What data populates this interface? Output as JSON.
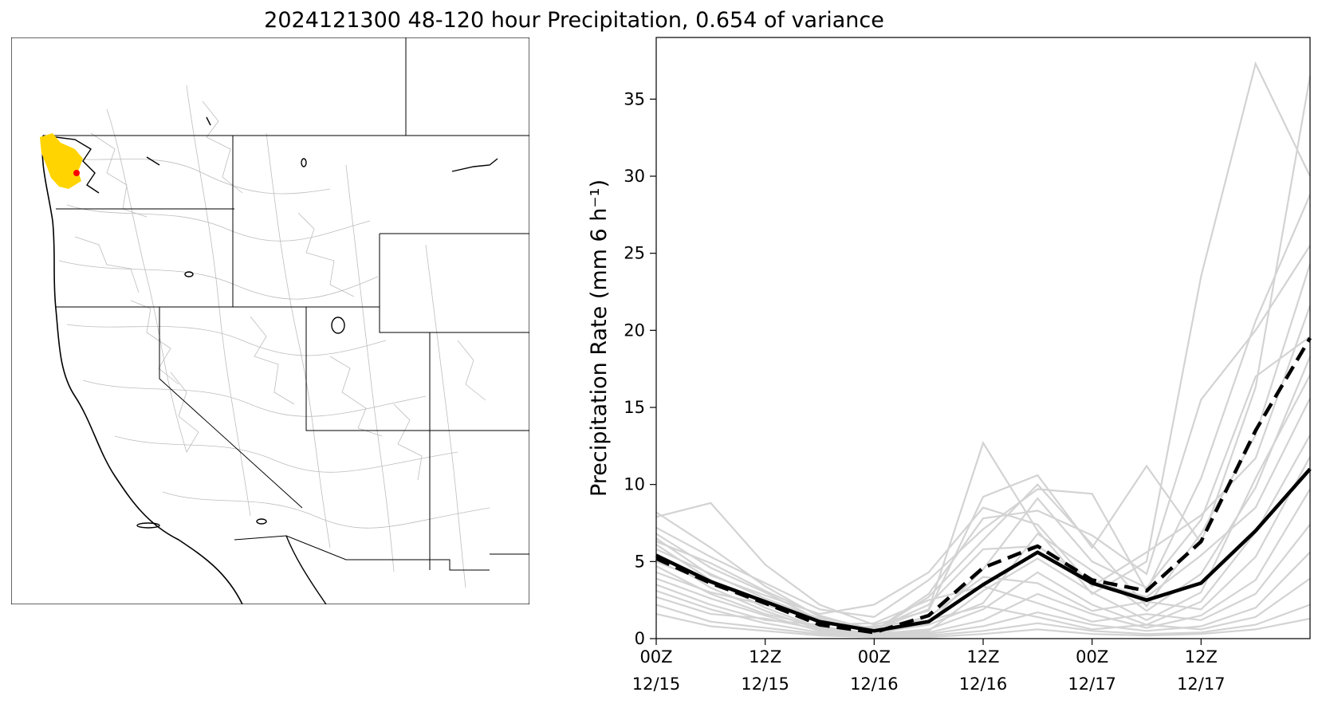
{
  "figure": {
    "title": "2024121300 48-120 hour Precipitation, 0.654 of variance"
  },
  "map": {
    "highlight_colors": {
      "basin": "#ffd400",
      "point": "#ff0000"
    },
    "border_color": "#000000",
    "river_color": "#bdbdbd"
  },
  "chart_data": {
    "type": "line",
    "title": "",
    "xlabel": "",
    "ylabel": "Precipitation Rate (mm 6 h⁻¹)",
    "ylim": [
      0,
      39
    ],
    "xlim": [
      "2024-12-15 00Z",
      "2024-12-18 00Z"
    ],
    "x": [
      "2024-12-15 00Z",
      "2024-12-15 06Z",
      "2024-12-15 12Z",
      "2024-12-15 18Z",
      "2024-12-16 00Z",
      "2024-12-16 06Z",
      "2024-12-16 12Z",
      "2024-12-16 18Z",
      "2024-12-17 00Z",
      "2024-12-17 06Z",
      "2024-12-17 12Z",
      "2024-12-17 18Z",
      "2024-12-18 00Z"
    ],
    "x_ticks": [
      {
        "x": "2024-12-15 00Z",
        "label": [
          "00Z",
          "12/15"
        ]
      },
      {
        "x": "2024-12-15 12Z",
        "label": [
          "12Z",
          "12/15"
        ]
      },
      {
        "x": "2024-12-16 00Z",
        "label": [
          "00Z",
          "12/16"
        ]
      },
      {
        "x": "2024-12-16 12Z",
        "label": [
          "12Z",
          "12/16"
        ]
      },
      {
        "x": "2024-12-17 00Z",
        "label": [
          "00Z",
          "12/17"
        ]
      },
      {
        "x": "2024-12-17 12Z",
        "label": [
          "12Z",
          "12/17"
        ]
      }
    ],
    "y_ticks": [
      0,
      5,
      10,
      15,
      20,
      25,
      30,
      35
    ],
    "grid": false,
    "series": [
      {
        "role": "ensemble-mean",
        "style": "solid",
        "color": "#000000",
        "values": [
          5.4,
          3.7,
          2.4,
          1.1,
          0.5,
          1.1,
          3.5,
          5.6,
          3.6,
          2.5,
          3.6,
          7.0,
          11.0
        ]
      },
      {
        "role": "analysis",
        "style": "dashed",
        "color": "#000000",
        "values": [
          5.2,
          3.6,
          2.3,
          0.9,
          0.4,
          1.5,
          4.6,
          6.0,
          3.8,
          3.1,
          6.3,
          13.5,
          19.5
        ]
      }
    ],
    "members": {
      "color": "#d3d3d3",
      "values": [
        [
          8.2,
          5.9,
          3.4,
          1.4,
          0.6,
          1.9,
          12.7,
          7.0,
          2.9,
          5.0,
          23.5,
          37.3,
          30.0
        ],
        [
          7.9,
          8.8,
          4.8,
          2.2,
          0.9,
          1.8,
          9.2,
          10.6,
          5.9,
          11.2,
          6.2,
          16.3,
          36.5
        ],
        [
          7.2,
          5.3,
          3.6,
          1.9,
          1.4,
          3.8,
          7.1,
          9.7,
          9.4,
          3.1,
          10.4,
          20.6,
          28.8
        ],
        [
          6.8,
          4.6,
          3.0,
          1.2,
          0.5,
          2.7,
          6.4,
          10.0,
          6.1,
          2.1,
          6.8,
          13.2,
          24.3
        ],
        [
          6.5,
          4.1,
          2.8,
          1.6,
          2.2,
          4.3,
          8.5,
          7.4,
          3.4,
          5.6,
          8.0,
          11.7,
          21.6
        ],
        [
          6.1,
          3.8,
          2.0,
          0.7,
          0.3,
          1.0,
          4.5,
          9.1,
          5.0,
          3.3,
          7.7,
          17.0,
          19.6
        ],
        [
          5.8,
          4.2,
          2.6,
          1.3,
          0.4,
          0.9,
          2.3,
          6.8,
          4.4,
          1.8,
          4.2,
          9.8,
          18.3
        ],
        [
          5.5,
          3.3,
          1.8,
          0.6,
          0.2,
          0.5,
          3.1,
          5.2,
          3.0,
          1.2,
          3.0,
          10.4,
          17.1
        ],
        [
          5.0,
          3.6,
          2.4,
          1.0,
          0.6,
          2.2,
          5.8,
          6.0,
          3.7,
          2.7,
          5.4,
          8.5,
          15.6
        ],
        [
          4.7,
          2.9,
          1.6,
          0.8,
          0.3,
          0.6,
          1.9,
          4.3,
          2.2,
          0.9,
          2.4,
          6.9,
          13.2
        ],
        [
          4.3,
          3.0,
          2.2,
          1.1,
          0.7,
          1.4,
          4.0,
          3.6,
          1.8,
          2.4,
          1.9,
          5.3,
          11.8
        ],
        [
          3.9,
          2.6,
          1.5,
          0.5,
          0.2,
          0.4,
          1.2,
          2.9,
          1.6,
          0.7,
          1.5,
          3.8,
          9.7
        ],
        [
          3.5,
          2.2,
          1.2,
          0.9,
          1.0,
          2.5,
          3.4,
          2.3,
          1.1,
          1.6,
          1.2,
          2.9,
          7.4
        ],
        [
          3.1,
          1.9,
          1.0,
          0.4,
          0.1,
          0.3,
          0.8,
          1.7,
          0.9,
          0.5,
          0.8,
          2.0,
          5.6
        ],
        [
          2.7,
          1.6,
          1.3,
          0.6,
          0.8,
          1.2,
          2.1,
          1.4,
          0.6,
          0.9,
          0.6,
          1.4,
          3.9
        ],
        [
          2.2,
          1.1,
          0.7,
          0.3,
          0.1,
          0.2,
          0.5,
          1.0,
          0.5,
          0.3,
          0.4,
          0.9,
          2.2
        ],
        [
          1.6,
          0.8,
          0.5,
          0.2,
          0.1,
          0.1,
          0.3,
          0.6,
          0.3,
          0.2,
          0.3,
          0.6,
          1.3
        ],
        [
          6.3,
          4.9,
          3.1,
          1.5,
          0.5,
          2.9,
          7.8,
          8.3,
          6.7,
          4.2,
          15.5,
          20.0,
          25.5
        ]
      ]
    }
  }
}
